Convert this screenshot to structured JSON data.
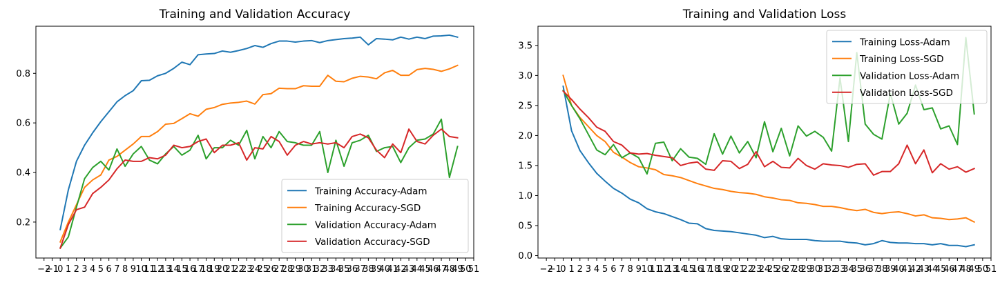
{
  "chart_data": [
    {
      "type": "line",
      "title": "Training and Validation Accuracy",
      "xlabel": "",
      "ylabel": "",
      "xlim": [
        -3,
        51
      ],
      "ylim": [
        0.055,
        0.99
      ],
      "xticks": [
        -2,
        -1,
        0,
        1,
        2,
        3,
        4,
        5,
        6,
        7,
        8,
        9,
        10,
        11,
        12,
        13,
        14,
        15,
        16,
        17,
        18,
        19,
        20,
        21,
        22,
        23,
        24,
        25,
        26,
        27,
        28,
        29,
        30,
        31,
        32,
        33,
        34,
        35,
        36,
        37,
        38,
        39,
        40,
        41,
        42,
        43,
        44,
        45,
        46,
        47,
        48,
        49,
        50,
        51
      ],
      "yticks": [
        0.2,
        0.4,
        0.6,
        0.8
      ],
      "ytick_labels": [
        "0.2",
        "0.4",
        "0.6",
        "0.8"
      ],
      "grid": false,
      "legend_position": "lower right",
      "x": [
        0,
        1,
        2,
        3,
        4,
        5,
        6,
        7,
        8,
        9,
        10,
        11,
        12,
        13,
        14,
        15,
        16,
        17,
        18,
        19,
        20,
        21,
        22,
        23,
        24,
        25,
        26,
        27,
        28,
        29,
        30,
        31,
        32,
        33,
        34,
        35,
        36,
        37,
        38,
        39,
        40,
        41,
        42,
        43,
        44,
        45,
        46,
        47,
        48,
        49
      ],
      "series": [
        {
          "name": "Training Accuracy-Adam",
          "color": "#1f77b4",
          "values": [
            0.17,
            0.33,
            0.445,
            0.51,
            0.56,
            0.605,
            0.645,
            0.685,
            0.71,
            0.73,
            0.77,
            0.772,
            0.79,
            0.8,
            0.82,
            0.845,
            0.835,
            0.875,
            0.878,
            0.88,
            0.89,
            0.885,
            0.892,
            0.9,
            0.912,
            0.905,
            0.92,
            0.93,
            0.93,
            0.926,
            0.93,
            0.932,
            0.924,
            0.932,
            0.936,
            0.94,
            0.942,
            0.946,
            0.915,
            0.94,
            0.938,
            0.935,
            0.946,
            0.938,
            0.946,
            0.94,
            0.95,
            0.951,
            0.954,
            0.946
          ]
        },
        {
          "name": "Training Accuracy-SGD",
          "color": "#ff7f0e",
          "values": [
            0.12,
            0.2,
            0.27,
            0.34,
            0.37,
            0.39,
            0.45,
            0.465,
            0.49,
            0.515,
            0.545,
            0.545,
            0.565,
            0.595,
            0.598,
            0.617,
            0.637,
            0.627,
            0.655,
            0.662,
            0.675,
            0.68,
            0.683,
            0.688,
            0.676,
            0.714,
            0.718,
            0.74,
            0.738,
            0.738,
            0.75,
            0.748,
            0.748,
            0.792,
            0.768,
            0.766,
            0.78,
            0.788,
            0.785,
            0.778,
            0.802,
            0.812,
            0.792,
            0.792,
            0.815,
            0.82,
            0.816,
            0.808,
            0.818,
            0.832
          ]
        },
        {
          "name": "Validation Accuracy-Adam",
          "color": "#2ca02c",
          "values": [
            0.095,
            0.14,
            0.26,
            0.375,
            0.42,
            0.445,
            0.41,
            0.495,
            0.425,
            0.475,
            0.505,
            0.45,
            0.435,
            0.475,
            0.505,
            0.47,
            0.49,
            0.55,
            0.455,
            0.5,
            0.5,
            0.53,
            0.51,
            0.57,
            0.455,
            0.545,
            0.5,
            0.565,
            0.525,
            0.52,
            0.51,
            0.51,
            0.565,
            0.4,
            0.53,
            0.425,
            0.52,
            0.53,
            0.55,
            0.485,
            0.5,
            0.505,
            0.44,
            0.5,
            0.53,
            0.535,
            0.555,
            0.615,
            0.38,
            0.505
          ]
        },
        {
          "name": "Validation Accuracy-SGD",
          "color": "#d62728",
          "values": [
            0.095,
            0.19,
            0.25,
            0.26,
            0.315,
            0.34,
            0.37,
            0.415,
            0.45,
            0.445,
            0.445,
            0.46,
            0.455,
            0.47,
            0.51,
            0.5,
            0.505,
            0.525,
            0.535,
            0.48,
            0.51,
            0.51,
            0.52,
            0.45,
            0.5,
            0.495,
            0.545,
            0.525,
            0.47,
            0.51,
            0.525,
            0.515,
            0.52,
            0.515,
            0.52,
            0.5,
            0.545,
            0.555,
            0.54,
            0.49,
            0.46,
            0.515,
            0.48,
            0.575,
            0.525,
            0.515,
            0.55,
            0.575,
            0.545,
            0.54
          ]
        }
      ]
    },
    {
      "type": "line",
      "title": "Training and Validation Loss",
      "xlabel": "",
      "ylabel": "",
      "xlim": [
        -3,
        51
      ],
      "ylim": [
        -0.04,
        3.82
      ],
      "xticks": [
        -2,
        -1,
        0,
        1,
        2,
        3,
        4,
        5,
        6,
        7,
        8,
        9,
        10,
        11,
        12,
        13,
        14,
        15,
        16,
        17,
        18,
        19,
        20,
        21,
        22,
        23,
        24,
        25,
        26,
        27,
        28,
        29,
        30,
        31,
        32,
        33,
        34,
        35,
        36,
        37,
        38,
        39,
        40,
        41,
        42,
        43,
        44,
        45,
        46,
        47,
        48,
        49,
        50,
        51
      ],
      "yticks": [
        0.0,
        0.5,
        1.0,
        1.5,
        2.0,
        2.5,
        3.0,
        3.5
      ],
      "ytick_labels": [
        "0.0",
        "0.5",
        "1.0",
        "1.5",
        "2.0",
        "2.5",
        "3.0",
        "3.5"
      ],
      "grid": false,
      "legend_position": "upper right",
      "x": [
        0,
        1,
        2,
        3,
        4,
        5,
        6,
        7,
        8,
        9,
        10,
        11,
        12,
        13,
        14,
        15,
        16,
        17,
        18,
        19,
        20,
        21,
        22,
        23,
        24,
        25,
        26,
        27,
        28,
        29,
        30,
        31,
        32,
        33,
        34,
        35,
        36,
        37,
        38,
        39,
        40,
        41,
        42,
        43,
        44,
        45,
        46,
        47,
        48,
        49
      ],
      "series": [
        {
          "name": "Training Loss-Adam",
          "color": "#1f77b4",
          "values": [
            2.82,
            2.08,
            1.75,
            1.55,
            1.37,
            1.24,
            1.12,
            1.04,
            0.94,
            0.88,
            0.78,
            0.73,
            0.7,
            0.65,
            0.6,
            0.54,
            0.53,
            0.45,
            0.42,
            0.41,
            0.4,
            0.38,
            0.36,
            0.34,
            0.3,
            0.32,
            0.28,
            0.27,
            0.27,
            0.27,
            0.25,
            0.24,
            0.24,
            0.24,
            0.22,
            0.21,
            0.18,
            0.2,
            0.25,
            0.22,
            0.21,
            0.21,
            0.2,
            0.2,
            0.18,
            0.2,
            0.17,
            0.17,
            0.15,
            0.18
          ]
        },
        {
          "name": "Training Loss-SGD",
          "color": "#ff7f0e",
          "values": [
            3.0,
            2.5,
            2.3,
            2.15,
            2.0,
            1.9,
            1.72,
            1.64,
            1.55,
            1.48,
            1.46,
            1.43,
            1.35,
            1.33,
            1.3,
            1.25,
            1.2,
            1.16,
            1.12,
            1.1,
            1.07,
            1.05,
            1.04,
            1.02,
            0.98,
            0.96,
            0.93,
            0.92,
            0.88,
            0.87,
            0.85,
            0.82,
            0.82,
            0.8,
            0.77,
            0.75,
            0.77,
            0.72,
            0.7,
            0.72,
            0.73,
            0.7,
            0.66,
            0.68,
            0.63,
            0.62,
            0.6,
            0.61,
            0.63,
            0.56
          ]
        },
        {
          "name": "Validation Loss-Adam",
          "color": "#2ca02c",
          "values": [
            2.75,
            2.5,
            2.28,
            2.02,
            1.76,
            1.68,
            1.85,
            1.63,
            1.71,
            1.63,
            1.36,
            1.87,
            1.89,
            1.58,
            1.78,
            1.64,
            1.62,
            1.52,
            2.03,
            1.69,
            1.99,
            1.71,
            1.9,
            1.63,
            2.23,
            1.73,
            2.12,
            1.66,
            2.16,
            1.99,
            2.07,
            1.97,
            1.74,
            2.96,
            1.9,
            3.38,
            2.19,
            2.02,
            1.94,
            2.7,
            2.19,
            2.37,
            2.84,
            2.43,
            2.46,
            2.11,
            2.16,
            1.85,
            3.63,
            2.36
          ]
        },
        {
          "name": "Validation Loss-SGD",
          "color": "#d62728",
          "values": [
            2.74,
            2.6,
            2.44,
            2.3,
            2.14,
            2.07,
            1.9,
            1.84,
            1.71,
            1.69,
            1.7,
            1.67,
            1.65,
            1.63,
            1.5,
            1.54,
            1.56,
            1.44,
            1.42,
            1.58,
            1.57,
            1.45,
            1.52,
            1.73,
            1.48,
            1.57,
            1.47,
            1.46,
            1.62,
            1.5,
            1.44,
            1.53,
            1.51,
            1.5,
            1.47,
            1.52,
            1.53,
            1.34,
            1.4,
            1.4,
            1.53,
            1.84,
            1.53,
            1.76,
            1.38,
            1.53,
            1.44,
            1.48,
            1.39,
            1.45
          ]
        }
      ]
    }
  ]
}
